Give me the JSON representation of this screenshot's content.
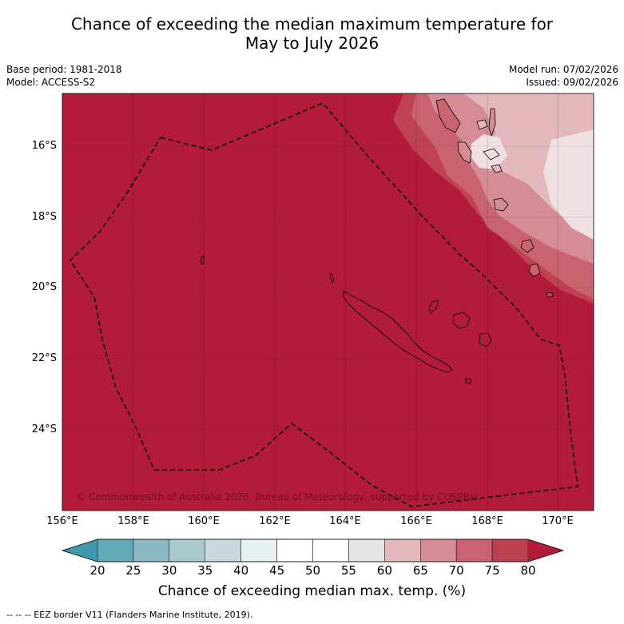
{
  "header": {
    "title_line1": "Chance of exceeding the median maximum temperature for",
    "title_line2": "May to July 2026",
    "base_period": "Base period: 1981-2018",
    "model": "Model: ACCESS-S2",
    "model_run": "Model run: 07/02/2026",
    "issued": "Issued: 09/02/2026"
  },
  "map": {
    "lat_labels": [
      "16°S",
      "18°S",
      "20°S",
      "22°S",
      "24°S"
    ],
    "lon_labels": [
      "156°E",
      "158°E",
      "160°E",
      "162°E",
      "164°E",
      "166°E",
      "168°E",
      "170°E"
    ],
    "copyright": "© Commonwealth of Australia 2026, Bureau of Meteorology, supported by COSPPac",
    "base_color": "#b31b3a"
  },
  "colorbar": {
    "ticks": [
      "20",
      "25",
      "30",
      "35",
      "40",
      "45",
      "50",
      "55",
      "60",
      "65",
      "70",
      "75",
      "80"
    ],
    "colors": [
      "#62aab7",
      "#8bb9c3",
      "#a9c9ce",
      "#c9dade",
      "#e9f0f2",
      "#ffffff",
      "#ffffff",
      "#e6e6e6",
      "#e3b9bd",
      "#d58c95",
      "#c9636f",
      "#bb4150"
    ],
    "low_color": "#3f98ab",
    "high_color": "#b31b3a",
    "title": "Chance of exceeding median max. temp. (%)"
  },
  "footer": {
    "legend": "-- -- -- EEZ border V11 (Flanders Marine Institute, 2019)."
  }
}
